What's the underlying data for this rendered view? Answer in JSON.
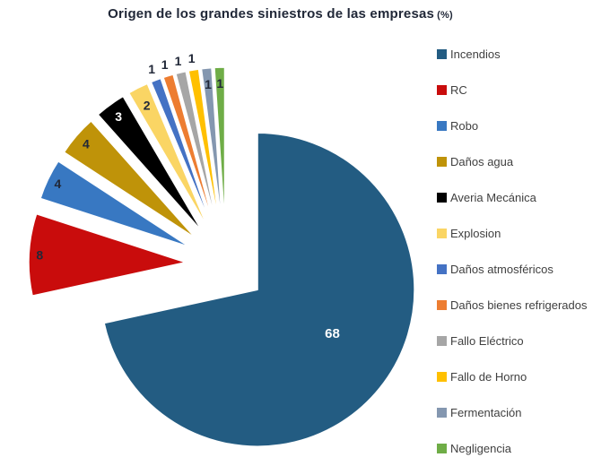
{
  "title": {
    "text": "Origen de los grandes siniestros de las empresas",
    "suffix": "(%)"
  },
  "colors": {
    "background": "#FFFFFF",
    "title_text": "#212838",
    "legend_text": "#404040",
    "slice_border": "#FFFFFF"
  },
  "chart_data": {
    "type": "pie",
    "title": "Origen de los grandes siniestros de las empresas (%)",
    "unit": "%",
    "direction": "clockwise",
    "start_angle_deg": 0,
    "exploded": true,
    "legend_position": "right",
    "values_sum_shown": 95,
    "slices": [
      {
        "label": "Incendios",
        "value": 68,
        "color": "#235C82",
        "label_color": "#FFFFFF"
      },
      {
        "label": "RC",
        "value": 8,
        "color": "#C90C0C",
        "label_color": "#212838"
      },
      {
        "label": "Robo",
        "value": 4,
        "color": "#3878C2",
        "label_color": "#212838"
      },
      {
        "label": "Daños agua",
        "value": 4,
        "color": "#BF9309",
        "label_color": "#212838"
      },
      {
        "label": "Averia Mecánica",
        "value": 3,
        "color": "#000000",
        "label_color": "#FFFFFF"
      },
      {
        "label": "Explosion",
        "value": 2,
        "color": "#FAD564",
        "label_color": "#212838"
      },
      {
        "label": "Daños atmosféricos",
        "value": 1,
        "color": "#4472C4",
        "label_color": "#212838"
      },
      {
        "label": "Daños bienes refrigerados",
        "value": 1,
        "color": "#ED7D31",
        "label_color": "#212838"
      },
      {
        "label": "Fallo Eléctrico",
        "value": 1,
        "color": "#A6A6A6",
        "label_color": "#212838"
      },
      {
        "label": "Fallo de Horno",
        "value": 1,
        "color": "#FFC000",
        "label_color": "#212838"
      },
      {
        "label": "Fermentación",
        "value": 1,
        "color": "#8497B0",
        "label_color": "#212838"
      },
      {
        "label": "Negligencia",
        "value": 1,
        "color": "#6FAD47",
        "label_color": "#212838"
      }
    ]
  }
}
